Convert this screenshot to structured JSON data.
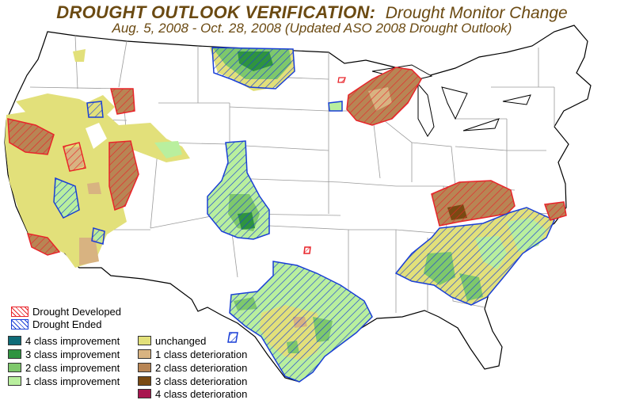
{
  "title": {
    "main": "DROUGHT OUTLOOK VERIFICATION:",
    "right": "Drought Monitor Change",
    "subtitle": "Aug. 5, 2008 - Oct. 28, 2008 (Updated ASO 2008 Drought Outlook)"
  },
  "legend": {
    "hatch": [
      {
        "label": "Drought Developed",
        "color": "#e8242a"
      },
      {
        "label": "Drought Ended",
        "color": "#1a3fd6"
      }
    ],
    "improvement": [
      {
        "label": "4 class improvement",
        "color": "#0e6b78"
      },
      {
        "label": "3 class improvement",
        "color": "#2f9440"
      },
      {
        "label": "2 class improvement",
        "color": "#7ec86b"
      },
      {
        "label": "1 class improvement",
        "color": "#b9ef9e"
      }
    ],
    "deterioration": [
      {
        "label": "unchanged",
        "color": "#e2e07a"
      },
      {
        "label": "1 class deterioration",
        "color": "#d8b381"
      },
      {
        "label": "2 class deterioration",
        "color": "#b88554"
      },
      {
        "label": "3 class deterioration",
        "color": "#7a4a12"
      },
      {
        "label": "4 class deterioration",
        "color": "#a8154f"
      }
    ]
  },
  "colors": {
    "title": "#6b4a12",
    "state_lines": "#9a9a9a",
    "outline": "#000000"
  }
}
